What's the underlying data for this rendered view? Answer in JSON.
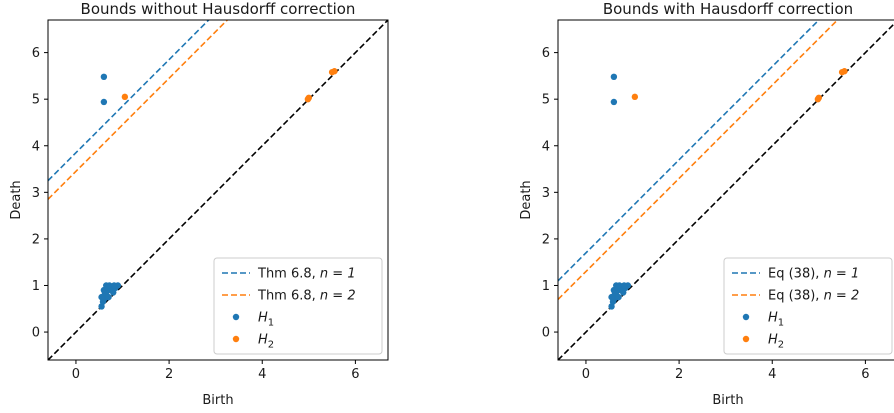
{
  "chart_data": [
    {
      "type": "scatter",
      "title": "Bounds without Hausdorff correction",
      "xlabel": "Birth",
      "ylabel": "Death",
      "xlim": [
        -0.6,
        6.7
      ],
      "ylim": [
        -0.6,
        6.7
      ],
      "xticks": [
        "0",
        "2",
        "4",
        "6"
      ],
      "yticks": [
        "0",
        "1",
        "2",
        "3",
        "4",
        "5",
        "6"
      ],
      "grid": false,
      "legend_position": "bottom-right",
      "diagonal": true,
      "lines": [
        {
          "name": "Thm 6.8, ",
          "name_math": "n = 1",
          "intercept": 3.85,
          "color": "#1f77b4",
          "dash": true
        },
        {
          "name": "Thm 6.8, ",
          "name_math": "n = 2",
          "intercept": 3.45,
          "color": "#ff7f0e",
          "dash": true
        }
      ],
      "series": [
        {
          "name_sym": "H",
          "name_sub": "1",
          "color": "#1f77b4",
          "points": [
            [
              0.6,
              5.48
            ],
            [
              0.6,
              4.94
            ],
            [
              0.55,
              0.55
            ],
            [
              0.6,
              0.7
            ],
            [
              0.65,
              0.8
            ],
            [
              0.7,
              0.9
            ],
            [
              0.75,
              0.95
            ],
            [
              0.8,
              0.85
            ],
            [
              0.85,
              0.95
            ],
            [
              0.9,
              1.0
            ],
            [
              0.6,
              0.9
            ],
            [
              0.65,
              1.0
            ],
            [
              0.7,
              0.75
            ],
            [
              0.58,
              0.65
            ],
            [
              0.62,
              0.85
            ],
            [
              0.68,
              0.95
            ],
            [
              0.72,
              1.0
            ],
            [
              0.78,
              0.9
            ],
            [
              0.82,
              1.0
            ],
            [
              0.55,
              0.75
            ]
          ]
        },
        {
          "name_sym": "H",
          "name_sub": "2",
          "color": "#ff7f0e",
          "points": [
            [
              1.05,
              5.05
            ],
            [
              5.0,
              5.03
            ],
            [
              4.98,
              5.0
            ],
            [
              5.5,
              5.58
            ],
            [
              5.55,
              5.6
            ]
          ]
        }
      ]
    },
    {
      "type": "scatter",
      "title": "Bounds with Hausdorff correction",
      "xlabel": "Birth",
      "ylabel": "Death",
      "xlim": [
        -0.6,
        6.7
      ],
      "ylim": [
        -0.6,
        6.7
      ],
      "xticks": [
        "0",
        "2",
        "4",
        "6"
      ],
      "yticks": [
        "0",
        "1",
        "2",
        "3",
        "4",
        "5",
        "6"
      ],
      "grid": false,
      "legend_position": "bottom-right",
      "diagonal": true,
      "lines": [
        {
          "name": "Eq (38), ",
          "name_math": "n = 1",
          "intercept": 1.7,
          "color": "#1f77b4",
          "dash": true
        },
        {
          "name": "Eq (38), ",
          "name_math": "n = 2",
          "intercept": 1.3,
          "color": "#ff7f0e",
          "dash": true
        }
      ],
      "series": [
        {
          "name_sym": "H",
          "name_sub": "1",
          "color": "#1f77b4",
          "points": [
            [
              0.6,
              5.48
            ],
            [
              0.6,
              4.94
            ],
            [
              0.55,
              0.55
            ],
            [
              0.6,
              0.7
            ],
            [
              0.65,
              0.8
            ],
            [
              0.7,
              0.9
            ],
            [
              0.75,
              0.95
            ],
            [
              0.8,
              0.85
            ],
            [
              0.85,
              0.95
            ],
            [
              0.9,
              1.0
            ],
            [
              0.6,
              0.9
            ],
            [
              0.65,
              1.0
            ],
            [
              0.7,
              0.75
            ],
            [
              0.58,
              0.65
            ],
            [
              0.62,
              0.85
            ],
            [
              0.68,
              0.95
            ],
            [
              0.72,
              1.0
            ],
            [
              0.78,
              0.9
            ],
            [
              0.82,
              1.0
            ],
            [
              0.55,
              0.75
            ]
          ]
        },
        {
          "name_sym": "H",
          "name_sub": "2",
          "color": "#ff7f0e",
          "points": [
            [
              1.05,
              5.05
            ],
            [
              5.0,
              5.03
            ],
            [
              4.98,
              5.0
            ],
            [
              5.5,
              5.58
            ],
            [
              5.55,
              5.6
            ]
          ]
        }
      ]
    }
  ]
}
